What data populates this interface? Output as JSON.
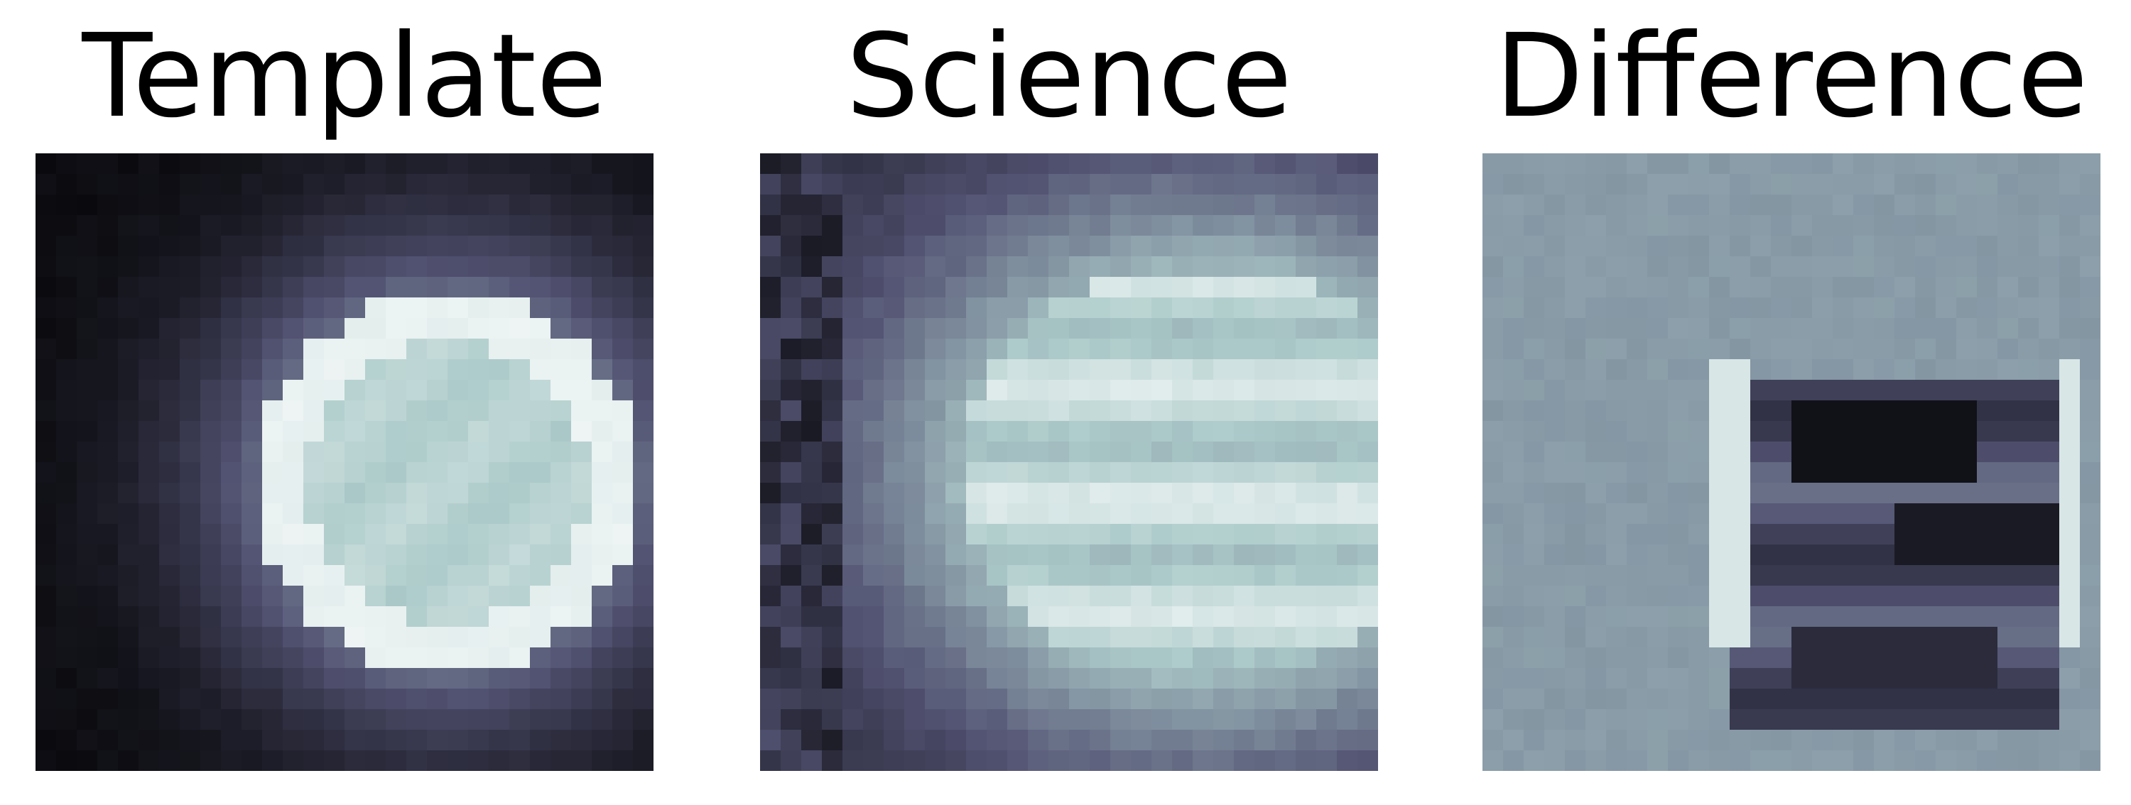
{
  "panels": [
    {
      "title": "Template",
      "colormap": "bone",
      "icon": "template-cutout-image"
    },
    {
      "title": "Science",
      "colormap": "bone",
      "icon": "science-cutout-image"
    },
    {
      "title": "Difference",
      "colormap": "bone",
      "icon": "difference-cutout-image"
    }
  ],
  "colors": {
    "background": "#ffffff",
    "title_text": "#000000",
    "bone_low": "#000000",
    "bone_mid": "#5a5a7a",
    "bone_high": "#ffffff"
  }
}
